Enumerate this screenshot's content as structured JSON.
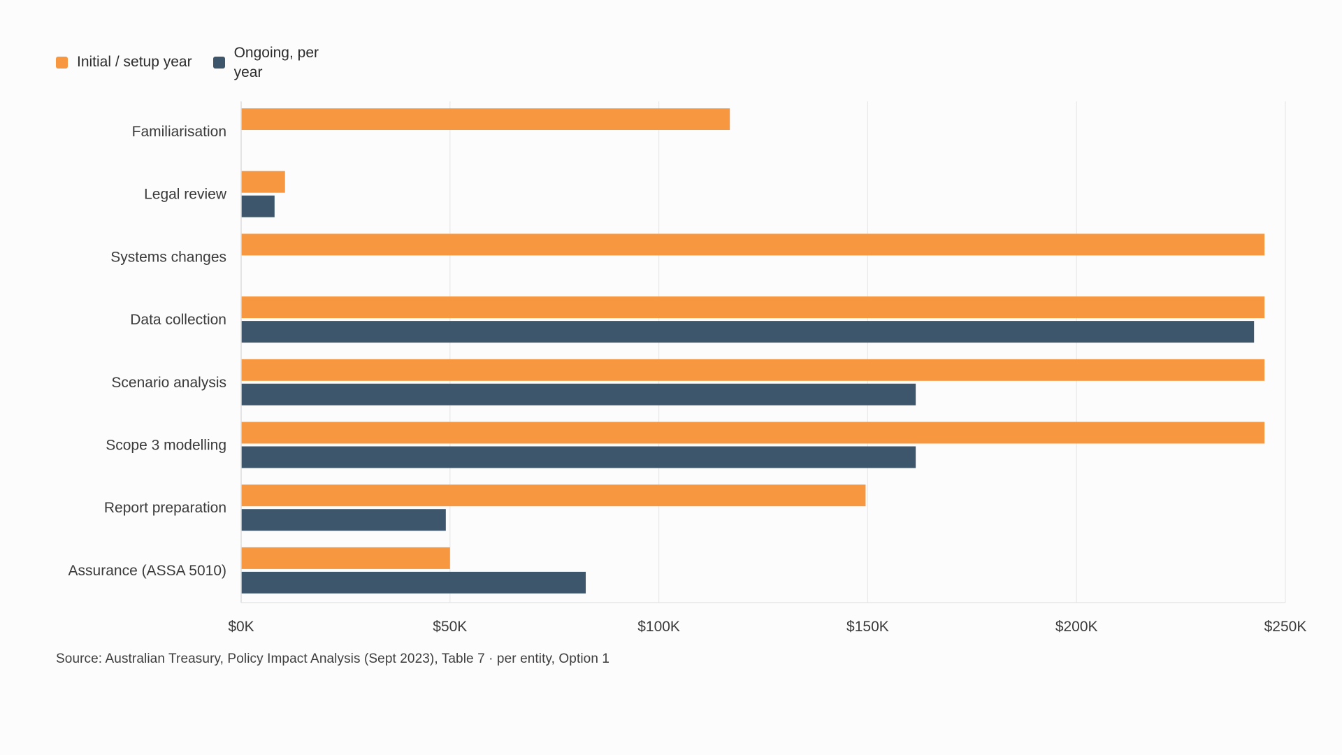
{
  "chart_data": {
    "type": "bar",
    "orientation": "horizontal",
    "categories": [
      "Familiarisation",
      "Legal review",
      "Systems changes",
      "Data collection",
      "Scenario analysis",
      "Scope 3 modelling",
      "Report preparation",
      "Assurance (ASSA 5010)"
    ],
    "series": [
      {
        "name": "Initial / setup year",
        "color": "#f7973f",
        "values": [
          117000,
          10500,
          245000,
          245000,
          245000,
          245000,
          149500,
          50000
        ]
      },
      {
        "name": "Ongoing, per year",
        "color": "#3d566b",
        "values": [
          0,
          8000,
          0,
          242500,
          161500,
          161500,
          49000,
          82500
        ]
      }
    ],
    "xlim": [
      0,
      250000
    ],
    "xticks": [
      0,
      50000,
      100000,
      150000,
      200000,
      250000
    ],
    "xtick_labels": [
      "$0K",
      "$50K",
      "$100K",
      "$150K",
      "$200K",
      "$250K"
    ],
    "grid": "vertical",
    "legend_position": "top-left",
    "source": "Source: Australian Treasury, Policy Impact Analysis (Sept 2023), Table 7 · per entity, Option 1"
  }
}
